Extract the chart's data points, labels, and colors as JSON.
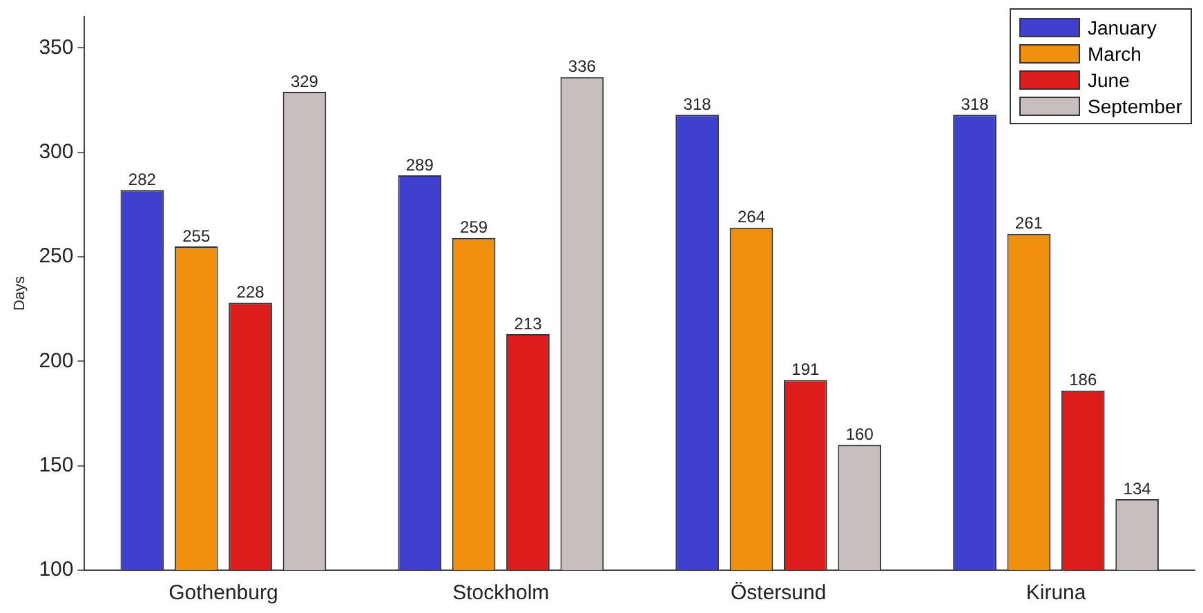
{
  "chart_data": {
    "type": "bar",
    "ylabel": "Days",
    "categories": [
      "Gothenburg",
      "Stockholm",
      "Östersund",
      "Kiruna"
    ],
    "series": [
      {
        "name": "January",
        "color": "#4040d0",
        "values": [
          282,
          289,
          318,
          318
        ]
      },
      {
        "name": "March",
        "color": "#f0900f",
        "values": [
          255,
          259,
          264,
          261
        ]
      },
      {
        "name": "June",
        "color": "#dd1c1c",
        "values": [
          228,
          213,
          191,
          186
        ]
      },
      {
        "name": "September",
        "color": "#c8bebe",
        "values": [
          329,
          336,
          160,
          134
        ]
      }
    ],
    "ylim": [
      100,
      365
    ],
    "yticks": [
      100,
      150,
      200,
      250,
      300,
      350
    ],
    "data_labels": true,
    "legend": "top right",
    "grid": false
  }
}
